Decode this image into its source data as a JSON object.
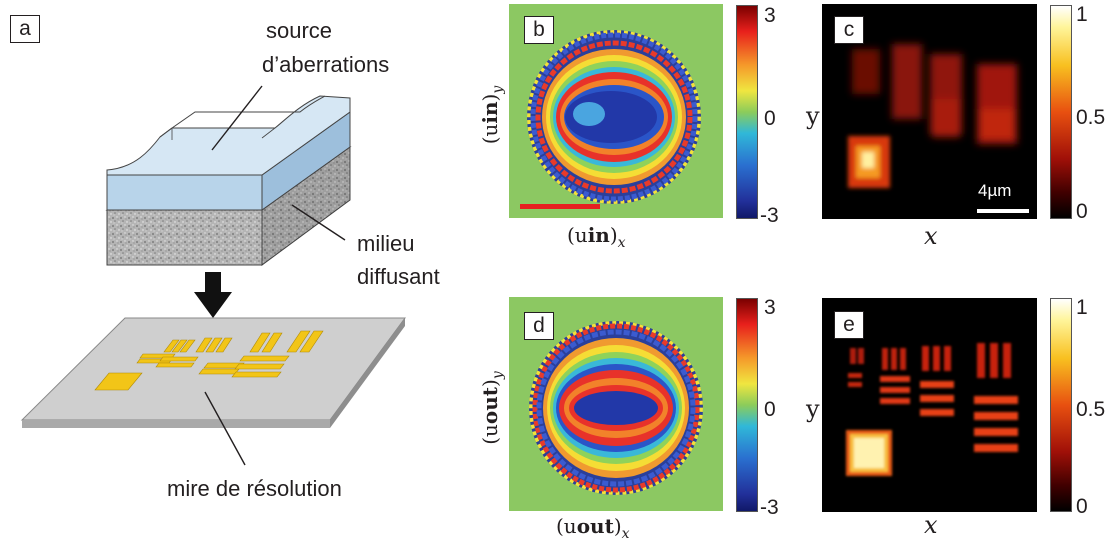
{
  "panel_a": {
    "label": "a",
    "aberration_source": [
      "source",
      "d’aberrations"
    ],
    "scattering_medium": [
      "milieu",
      "diffusant"
    ],
    "resolution_target": "mire de résolution"
  },
  "panel_b": {
    "label": "b",
    "xlabel_main": "(u",
    "xlabel_bold": "in",
    "xlabel_close": ")",
    "xlabel_sub": "x",
    "ylabel_main": "(u",
    "ylabel_bold": "in",
    "ylabel_close": ")",
    "ylabel_sub": "y"
  },
  "panel_c": {
    "label": "c",
    "xlabel": "x",
    "ylabel": "y",
    "scalebar": "4µm"
  },
  "panel_d": {
    "label": "d",
    "xlabel_main": "(u",
    "xlabel_bold": "out",
    "xlabel_close": ")",
    "xlabel_sub": "x",
    "ylabel_main": "(u",
    "ylabel_bold": "out",
    "ylabel_close": ")",
    "ylabel_sub": "y"
  },
  "panel_e": {
    "label": "e",
    "xlabel": "x",
    "ylabel": "y"
  },
  "phase_colorbar": {
    "ticks": [
      "3",
      "0",
      "-3"
    ]
  },
  "intensity_colorbar": {
    "ticks": [
      "1",
      "0.5",
      "0"
    ]
  },
  "colors": {
    "phase_background": "#8cc862",
    "scalebar_red": "#e62020",
    "glass_blue": "#b8d4ea",
    "gold": "#f2c518"
  }
}
